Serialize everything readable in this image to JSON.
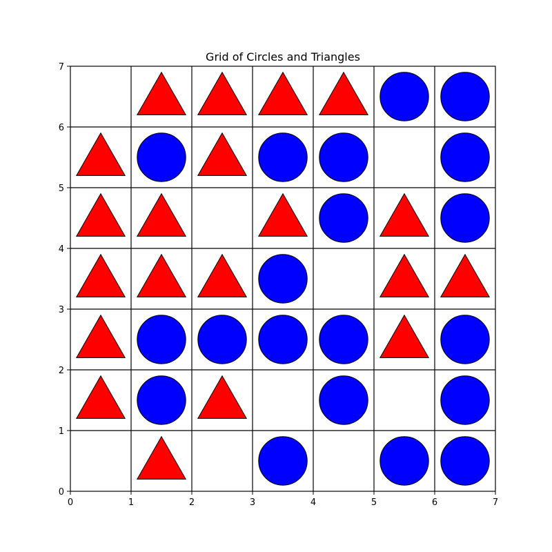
{
  "chart_data": {
    "type": "scatter",
    "title": "Grid of Circles and Triangles",
    "xlabel": "",
    "ylabel": "",
    "xlim": [
      0,
      7
    ],
    "ylim": [
      0,
      7
    ],
    "xticks": [
      "0",
      "1",
      "2",
      "3",
      "4",
      "5",
      "6",
      "7"
    ],
    "yticks": [
      "0",
      "1",
      "2",
      "3",
      "4",
      "5",
      "6",
      "7"
    ],
    "grid": true,
    "colors": {
      "circle": "#0000ff",
      "triangle": "#ff0000",
      "edge": "#000000"
    },
    "rows": [
      {
        "y": 6,
        "cells": [
          "",
          "triangle",
          "triangle",
          "triangle",
          "triangle",
          "circle",
          "circle"
        ]
      },
      {
        "y": 5,
        "cells": [
          "triangle",
          "circle",
          "triangle",
          "circle",
          "circle",
          "",
          "circle"
        ]
      },
      {
        "y": 4,
        "cells": [
          "triangle",
          "triangle",
          "",
          "triangle",
          "circle",
          "triangle",
          "circle"
        ]
      },
      {
        "y": 3,
        "cells": [
          "triangle",
          "triangle",
          "triangle",
          "circle",
          "",
          "triangle",
          "triangle"
        ]
      },
      {
        "y": 2,
        "cells": [
          "triangle",
          "circle",
          "circle",
          "circle",
          "circle",
          "triangle",
          "circle"
        ]
      },
      {
        "y": 1,
        "cells": [
          "triangle",
          "circle",
          "triangle",
          "",
          "circle",
          "",
          "circle"
        ]
      },
      {
        "y": 0,
        "cells": [
          "",
          "triangle",
          "",
          "circle",
          "",
          "circle",
          "circle"
        ]
      }
    ]
  }
}
